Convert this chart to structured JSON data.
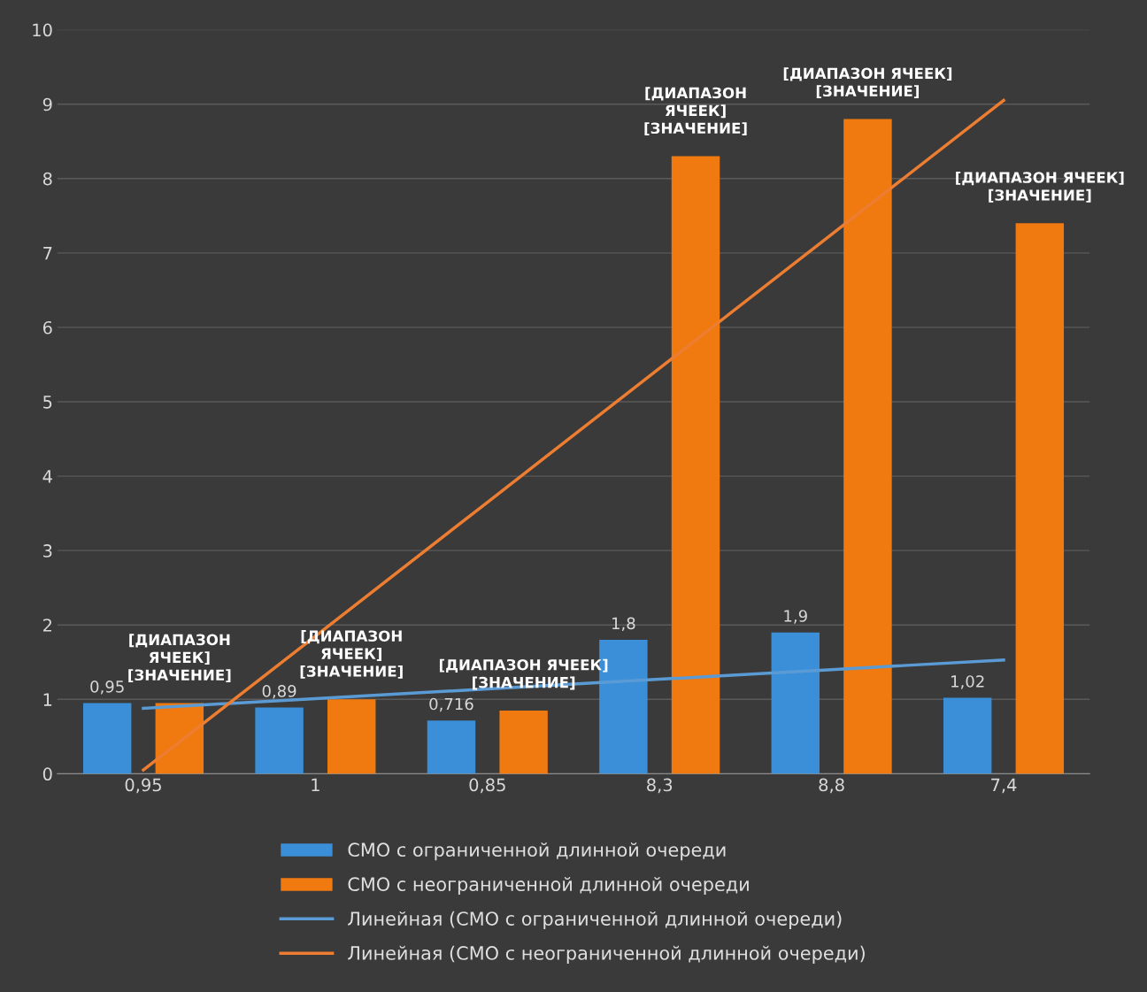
{
  "chart_data": {
    "type": "bar",
    "categories": [
      "0,95",
      "1",
      "0,85",
      "8,3",
      "8,8",
      "7,4"
    ],
    "series": [
      {
        "name": "СМО с ограниченной длинной очереди",
        "color": "#3a8fd8",
        "values": [
          0.95,
          0.89,
          0.716,
          1.8,
          1.9,
          1.02
        ],
        "value_labels": [
          "0,95",
          "0,89",
          "0,716",
          "1,8",
          "1,9",
          "1,02"
        ]
      },
      {
        "name": "СМО с неограниченной длинной очереди",
        "color": "#f07a10",
        "values": [
          0.95,
          1.0,
          0.85,
          8.3,
          8.8,
          7.4
        ],
        "value_labels": [
          "[ДИАПАЗОН\nЯЧЕЕК]\n[ЗНАЧЕНИЕ]",
          "[ДИАПАЗОН\nЯЧЕЕК]\n[ЗНАЧЕНИЕ]",
          "[ДИАПАЗОН ЯЧЕЕК]\n[ЗНАЧЕНИЕ]",
          "[ДИАПАЗОН\nЯЧЕЕК]\n[ЗНАЧЕНИЕ]",
          "[ДИАПАЗОН ЯЧЕЕК]\n[ЗНАЧЕНИЕ]",
          "[ДИАПАЗОН ЯЧЕЕК]\n[ЗНАЧЕНИЕ]"
        ]
      },
      {
        "name": "Линейная (СМО с ограниченной длинной очереди)",
        "type": "line",
        "color": "#5b9bd5",
        "values": [
          0.88,
          1.01,
          1.14,
          1.27,
          1.4,
          1.53
        ]
      },
      {
        "name": "Линейная (СМО с неограниченной длинной очереди)",
        "type": "line",
        "color": "#ed7d31",
        "values": [
          0.05,
          1.85,
          3.65,
          5.45,
          7.25,
          9.05
        ]
      }
    ],
    "ylim": [
      0,
      10
    ],
    "yticks": [
      0,
      1,
      2,
      3,
      4,
      5,
      6,
      7,
      8,
      9,
      10
    ],
    "grid": "y",
    "legend": "bottom",
    "marker": "none",
    "line_style": "solid"
  }
}
